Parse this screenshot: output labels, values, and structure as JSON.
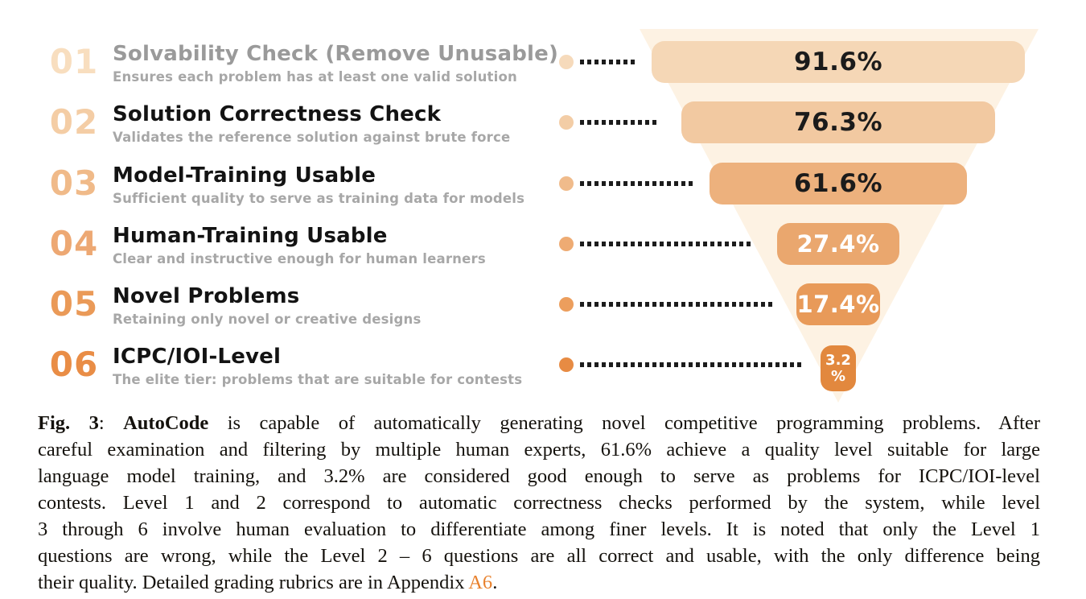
{
  "figure": {
    "funnel_bg_color": "#fdf2e3",
    "dot_leader_color": "#1c1c1c",
    "rows": [
      {
        "num": "01",
        "title": "Solvability Check (Remove Unusable)",
        "subtitle": "Ensures each problem has at least one valid solution",
        "value": "91.6%",
        "num_color": "#f8debf",
        "circle_color": "#f6dabb",
        "bar_color": "#f5d7b6",
        "title_color": "#9a9a9a",
        "value_text_color": "#1b1b1b"
      },
      {
        "num": "02",
        "title": "Solution Correctness Check",
        "subtitle": "Validates the reference solution against brute force",
        "value": "76.3%",
        "num_color": "#f4cda5",
        "circle_color": "#f3cda6",
        "bar_color": "#f2c9a1",
        "title_color": "#131313",
        "value_text_color": "#1b1b1b"
      },
      {
        "num": "03",
        "title": "Model-Training Usable",
        "subtitle": "Sufficient quality to serve as training data for models",
        "value": "61.6%",
        "num_color": "#f0ba89",
        "circle_color": "#f0bb8b",
        "bar_color": "#edb17d",
        "title_color": "#131313",
        "value_text_color": "#1b1b1b"
      },
      {
        "num": "04",
        "title": "Human-Training Usable",
        "subtitle": "Clear and instructive enough for human learners",
        "value": "27.4%",
        "num_color": "#eda873",
        "circle_color": "#eeab73",
        "bar_color": "#eaa76e",
        "title_color": "#131313",
        "value_text_color": "#ffffff"
      },
      {
        "num": "05",
        "title": "Novel Problems",
        "subtitle": "Retaining only novel or creative designs",
        "value": "17.4%",
        "num_color": "#ea9a58",
        "circle_color": "#ec9e5d",
        "bar_color": "#e89a59",
        "title_color": "#131313",
        "value_text_color": "#ffffff"
      },
      {
        "num": "06",
        "title": "ICPC/IOI-Level",
        "subtitle": "The elite tier: problems that are suitable for contests",
        "value": "3.2%",
        "value_line1": "3.2",
        "value_line2": "%",
        "num_color": "#e98d46",
        "circle_color": "#e78b43",
        "bar_color": "#e2883e",
        "title_color": "#131313",
        "value_text_color": "#ffffff"
      }
    ]
  },
  "chart_data": {
    "type": "funnel",
    "title": "AutoCode problem filtering funnel",
    "categories": [
      "Solvability Check (Remove Unusable)",
      "Solution Correctness Check",
      "Model-Training Usable",
      "Human-Training Usable",
      "Novel Problems",
      "ICPC/IOI-Level"
    ],
    "values": [
      91.6,
      76.3,
      61.6,
      27.4,
      17.4,
      3.2
    ],
    "unit": "%",
    "legend_position": "none",
    "grid": false
  },
  "caption": {
    "line1": {
      "fig_label": "Fig. 3",
      "sep": ": ",
      "bold_word": "AutoCode",
      "rest": " is capable of automatically generating novel competitive programming problems. After"
    },
    "line2": "careful examination and filtering by multiple human experts, 61.6% achieve a quality level suitable for large",
    "line3": "language model training, and 3.2% are considered good enough to serve as problems for ICPC/IOI-level",
    "line4": "contests. Level 1 and 2 correspond to automatic correctness checks performed by the system, while level",
    "line5": "3 through 6 involve human evaluation to differentiate among finer levels. It is noted that only the Level 1",
    "line6": "questions are wrong, while the Level 2 – 6 questions are all correct and usable, with the only difference being",
    "line7": {
      "pre": "their quality. Detailed grading rubrics are in Appendix ",
      "link": "A6",
      "post": "."
    }
  }
}
